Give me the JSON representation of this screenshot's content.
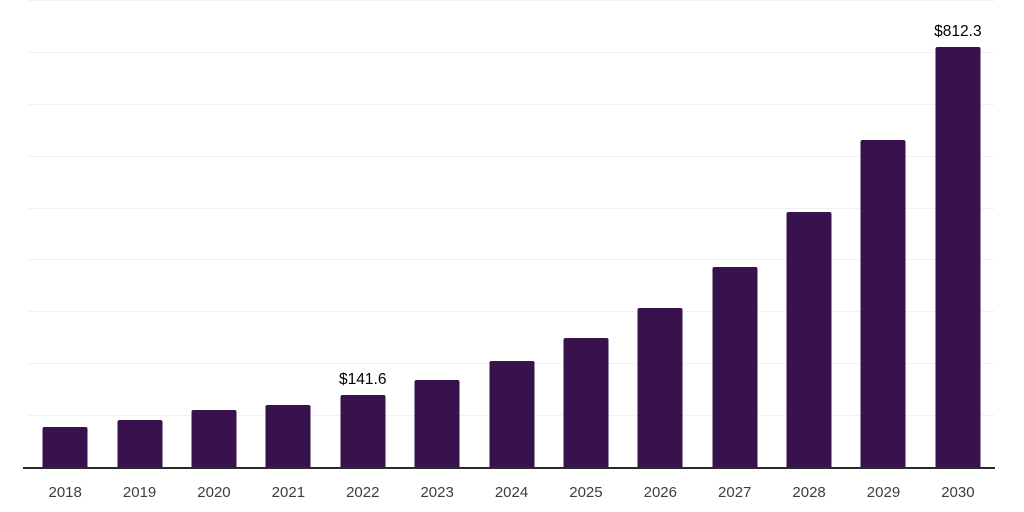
{
  "chart_data": {
    "type": "bar",
    "title": "",
    "xlabel": "",
    "ylabel": "",
    "categories": [
      "2018",
      "2019",
      "2020",
      "2021",
      "2022",
      "2023",
      "2024",
      "2025",
      "2026",
      "2027",
      "2028",
      "2029",
      "2030"
    ],
    "values": [
      79,
      92,
      111,
      122,
      141.6,
      170,
      206,
      250,
      309,
      388,
      494,
      632,
      812.3
    ],
    "value_labels": [
      null,
      null,
      null,
      null,
      "$141.6",
      null,
      null,
      null,
      null,
      null,
      null,
      null,
      "$812.3"
    ],
    "ylim": [
      0,
      900
    ],
    "gridline_interval": 100,
    "grid": "horizontal",
    "legend": "none",
    "colors": {
      "bar": "#37124D",
      "gridline": "#f2f2f2",
      "axis_line": "#2b2b2b",
      "tick_label": "#3d3d3d",
      "value_label": "#000000",
      "background": "#ffffff"
    }
  }
}
